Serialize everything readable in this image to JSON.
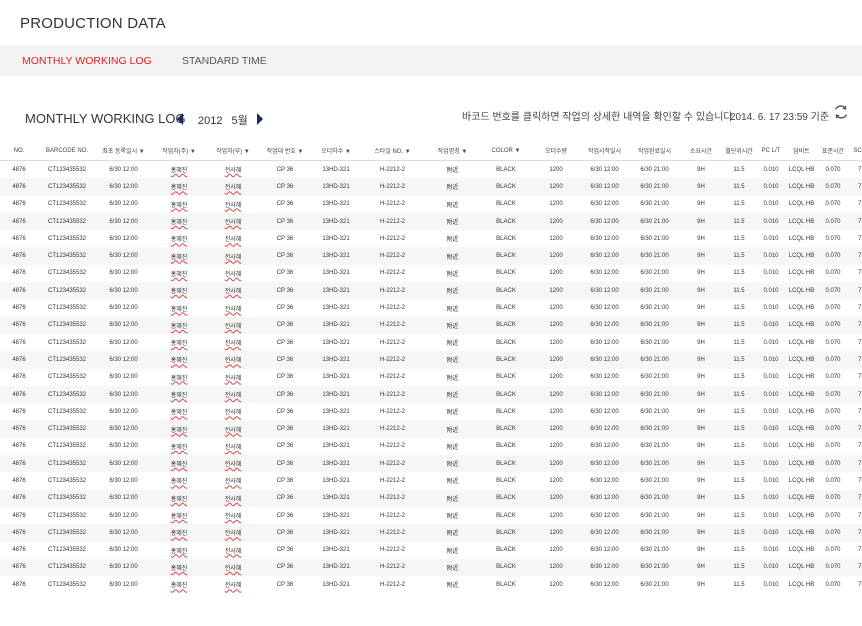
{
  "page_title": "PRODUCTION DATA",
  "tabs": [
    {
      "label": "MONTHLY WORKING LOG"
    },
    {
      "label": "STANDARD TIME"
    }
  ],
  "section_title": "MONTHLY WORKING LOG",
  "period": {
    "year": "2012",
    "month": "5월"
  },
  "hint": "바코드 번호를 클릭하면 작업의 상세한 내역을 확인할 수 있습니다.",
  "timestamp": "2014. 6. 17  23:59 기준",
  "colors": {
    "accent": "#e02020",
    "nav_arrow": "#1a2a5a"
  },
  "icons": {
    "prev": "triangle-left",
    "next": "triangle-right",
    "refresh": "refresh-arrows"
  },
  "table": {
    "headers": [
      "NO.",
      "BARCODE NO.",
      "최초 등록일시 ▼",
      "작업자(주) ▼",
      "작업자(부) ▼",
      "작업대 번호 ▼",
      "오더차수 ▼",
      "스타일 NO. ▼",
      "작업명칭 ▼",
      "COLOR ▼",
      "오더수량",
      "작업시작일시",
      "작업완료일시",
      "소요시간",
      "월단위시간",
      "PC L/T",
      "담비트",
      "표준시간",
      "SCORE"
    ],
    "rows": [
      [
        "4876",
        "CT123435532",
        "6/30 12:00",
        "홍혜진",
        "전사혜",
        "CP 36",
        "13HD-321",
        "H-2212-2",
        "附近",
        "BLACK",
        "1200",
        "6/30  12:00",
        "6/30  21:00",
        "9H",
        "11.5",
        "0.010",
        "LCQL HB",
        "0.070",
        "7.30"
      ],
      [
        "4876",
        "CT123435532",
        "6/30 12:00",
        "홍혜진",
        "전사혜",
        "CP 36",
        "13HD-321",
        "H-2212-2",
        "附近",
        "BLACK",
        "1200",
        "6/30  12:00",
        "6/30  21:00",
        "9H",
        "11.5",
        "0.010",
        "LCQL HB",
        "0.070",
        "7.30"
      ],
      [
        "4876",
        "CT123435532",
        "6/30 12:00",
        "홍혜진",
        "전사혜",
        "CP 36",
        "13HD-321",
        "H-2212-2",
        "附近",
        "BLACK",
        "1200",
        "6/30  12:00",
        "6/30  21:00",
        "9H",
        "11.5",
        "0.010",
        "LCQL HB",
        "0.070",
        "7.30"
      ],
      [
        "4876",
        "CT123435532",
        "6/30 12:00",
        "홍혜진",
        "전사혜",
        "CP 36",
        "13HD-321",
        "H-2212-2",
        "附近",
        "BLACK",
        "1200",
        "6/30  12:00",
        "6/30  21:00",
        "9H",
        "11.5",
        "0.010",
        "LCQL HB",
        "0.070",
        "7.30"
      ],
      [
        "4876",
        "CT123435532",
        "6/30 12:00",
        "홍혜진",
        "전사혜",
        "CP 36",
        "13HD-321",
        "H-2212-2",
        "附近",
        "BLACK",
        "1200",
        "6/30  12:00",
        "6/30  21:00",
        "9H",
        "11.5",
        "0.010",
        "LCQL HB",
        "0.070",
        "7.30"
      ],
      [
        "4876",
        "CT123435532",
        "6/30 12:00",
        "홍혜진",
        "전사혜",
        "CP 36",
        "13HD-321",
        "H-2212-2",
        "附近",
        "BLACK",
        "1200",
        "6/30  12:00",
        "6/30  21:00",
        "9H",
        "11.5",
        "0.010",
        "LCQL HB",
        "0.070",
        "7.30"
      ],
      [
        "4876",
        "CT123435532",
        "6/30 12:00",
        "홍혜진",
        "전사혜",
        "CP 36",
        "13HD-321",
        "H-2212-2",
        "附近",
        "BLACK",
        "1200",
        "6/30  12:00",
        "6/30  21:00",
        "9H",
        "11.5",
        "0.010",
        "LCQL HB",
        "0.070",
        "7.30"
      ],
      [
        "4876",
        "CT123435532",
        "6/30 12:00",
        "홍혜진",
        "전사혜",
        "CP 36",
        "13HD-321",
        "H-2212-2",
        "附近",
        "BLACK",
        "1200",
        "6/30  12:00",
        "6/30  21:00",
        "9H",
        "11.5",
        "0.010",
        "LCQL HB",
        "0.070",
        "7.30"
      ],
      [
        "4876",
        "CT123435532",
        "6/30 12:00",
        "홍혜진",
        "전사혜",
        "CP 36",
        "13HD-321",
        "H-2212-2",
        "附近",
        "BLACK",
        "1200",
        "6/30  12:00",
        "6/30  21:00",
        "9H",
        "11.5",
        "0.010",
        "LCQL HB",
        "0.070",
        "7.30"
      ],
      [
        "4876",
        "CT123435532",
        "6/30 12:00",
        "홍혜진",
        "전사혜",
        "CP 36",
        "13HD-321",
        "H-2212-2",
        "附近",
        "BLACK",
        "1200",
        "6/30  12:00",
        "6/30  21:00",
        "9H",
        "11.5",
        "0.010",
        "LCQL HB",
        "0.070",
        "7.30"
      ],
      [
        "4876",
        "CT123435532",
        "6/30 12:00",
        "홍혜진",
        "전사혜",
        "CP 36",
        "13HD-321",
        "H-2212-2",
        "附近",
        "BLACK",
        "1200",
        "6/30  12:00",
        "6/30  21:00",
        "9H",
        "11.5",
        "0.010",
        "LCQL HB",
        "0.070",
        "7.30"
      ],
      [
        "4876",
        "CT123435532",
        "6/30 12:00",
        "홍혜진",
        "전사혜",
        "CP 36",
        "13HD-321",
        "H-2212-2",
        "附近",
        "BLACK",
        "1200",
        "6/30  12:00",
        "6/30  21:00",
        "9H",
        "11.5",
        "0.010",
        "LCQL HB",
        "0.070",
        "7.30"
      ],
      [
        "4876",
        "CT123435532",
        "6/30 12:00",
        "홍혜진",
        "전사혜",
        "CP 36",
        "13HD-321",
        "H-2212-2",
        "附近",
        "BLACK",
        "1200",
        "6/30  12:00",
        "6/30  21:00",
        "9H",
        "11.5",
        "0.010",
        "LCQL HB",
        "0.070",
        "7.30"
      ],
      [
        "4876",
        "CT123435532",
        "6/30 12:00",
        "홍혜진",
        "전사혜",
        "CP 36",
        "13HD-321",
        "H-2212-2",
        "附近",
        "BLACK",
        "1200",
        "6/30  12:00",
        "6/30  21:00",
        "9H",
        "11.5",
        "0.010",
        "LCQL HB",
        "0.070",
        "7.30"
      ],
      [
        "4876",
        "CT123435532",
        "6/30 12:00",
        "홍혜진",
        "전사혜",
        "CP 36",
        "13HD-321",
        "H-2212-2",
        "附近",
        "BLACK",
        "1200",
        "6/30  12:00",
        "6/30  21:00",
        "9H",
        "11.5",
        "0.010",
        "LCQL HB",
        "0.070",
        "7.30"
      ],
      [
        "4876",
        "CT123435532",
        "6/30 12:00",
        "홍혜진",
        "전사혜",
        "CP 36",
        "13HD-321",
        "H-2212-2",
        "附近",
        "BLACK",
        "1200",
        "6/30  12:00",
        "6/30  21:00",
        "9H",
        "11.5",
        "0.010",
        "LCQL HB",
        "0.070",
        "7.30"
      ],
      [
        "4876",
        "CT123435532",
        "6/30 12:00",
        "홍혜진",
        "전사혜",
        "CP 36",
        "13HD-321",
        "H-2212-2",
        "附近",
        "BLACK",
        "1200",
        "6/30  12:00",
        "6/30  21:00",
        "9H",
        "11.5",
        "0.010",
        "LCQL HB",
        "0.070",
        "7.30"
      ],
      [
        "4876",
        "CT123435532",
        "6/30 12:00",
        "홍혜진",
        "전사혜",
        "CP 36",
        "13HD-321",
        "H-2212-2",
        "附近",
        "BLACK",
        "1200",
        "6/30  12:00",
        "6/30  21:00",
        "9H",
        "11.5",
        "0.010",
        "LCQL HB",
        "0.070",
        "7.30"
      ],
      [
        "4876",
        "CT123435532",
        "6/30 12:00",
        "홍혜진",
        "전사혜",
        "CP 36",
        "13HD-321",
        "H-2212-2",
        "附近",
        "BLACK",
        "1200",
        "6/30  12:00",
        "6/30  21:00",
        "9H",
        "11.5",
        "0.010",
        "LCQL HB",
        "0.070",
        "7.30"
      ],
      [
        "4876",
        "CT123435532",
        "6/30 12:00",
        "홍혜진",
        "전사혜",
        "CP 36",
        "13HD-321",
        "H-2212-2",
        "附近",
        "BLACK",
        "1200",
        "6/30  12:00",
        "6/30  21:00",
        "9H",
        "11.5",
        "0.010",
        "LCQL HB",
        "0.070",
        "7.30"
      ],
      [
        "4876",
        "CT123435532",
        "6/30 12:00",
        "홍혜진",
        "전사혜",
        "CP 36",
        "13HD-321",
        "H-2212-2",
        "附近",
        "BLACK",
        "1200",
        "6/30  12:00",
        "6/30  21:00",
        "9H",
        "11.5",
        "0.010",
        "LCQL HB",
        "0.070",
        "7.30"
      ],
      [
        "4876",
        "CT123435532",
        "6/30 12:00",
        "홍혜진",
        "전사혜",
        "CP 36",
        "13HD-321",
        "H-2212-2",
        "附近",
        "BLACK",
        "1200",
        "6/30  12:00",
        "6/30  21:00",
        "9H",
        "11.5",
        "0.010",
        "LCQL HB",
        "0.070",
        "7.30"
      ],
      [
        "4876",
        "CT123435532",
        "6/30 12:00",
        "홍혜진",
        "전사혜",
        "CP 36",
        "13HD-321",
        "H-2212-2",
        "附近",
        "BLACK",
        "1200",
        "6/30  12:00",
        "6/30  21:00",
        "9H",
        "11.5",
        "0.010",
        "LCQL HB",
        "0.070",
        "7.30"
      ],
      [
        "4876",
        "CT123435532",
        "6/30 12:00",
        "홍혜진",
        "전사혜",
        "CP 36",
        "13HD-321",
        "H-2212-2",
        "附近",
        "BLACK",
        "1200",
        "6/30  12:00",
        "6/30  21:00",
        "9H",
        "11.5",
        "0.010",
        "LCQL HB",
        "0.070",
        "7.30"
      ],
      [
        "4876",
        "CT123435532",
        "6/30 12:00",
        "홍혜진",
        "전사혜",
        "CP 36",
        "13HD-321",
        "H-2212-2",
        "附近",
        "BLACK",
        "1200",
        "6/30  12:00",
        "6/30  21:00",
        "9H",
        "11.5",
        "0.010",
        "LCQL HB",
        "0.070",
        "7.30"
      ]
    ]
  }
}
